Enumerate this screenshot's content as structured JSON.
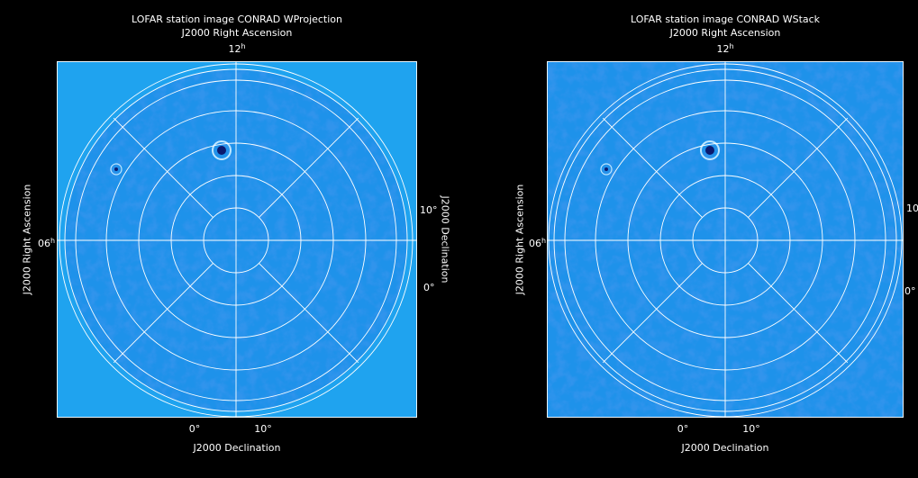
{
  "colors": {
    "background": "#000000",
    "map_light": "#1fa3ef",
    "map_dark": "#0a58d8",
    "grid": "#ffffff"
  },
  "left": {
    "title": "LOFAR station image CONRAD WProjection",
    "top_axis_label": "J2000 Right Ascension",
    "top_tick": "12",
    "top_tick_unit": "h",
    "left_axis_label": "J2000 Right Ascension",
    "left_tick": "06",
    "left_tick_unit": "h",
    "right_axis_label": "J2000 Declination",
    "right_ticks": [
      "10°",
      "0°"
    ],
    "bottom_ticks": [
      "0°",
      "10°"
    ],
    "bottom_axis_label": "J2000 Declination"
  },
  "right": {
    "title": "LOFAR station image CONRAD WStack",
    "top_axis_label": "J2000 Right Ascension",
    "top_tick": "12",
    "top_tick_unit": "h",
    "left_axis_label": "J2000 Right Ascension",
    "left_tick": "06",
    "left_tick_unit": "h",
    "right_ticks": [
      "10",
      "0°"
    ],
    "bottom_ticks": [
      "0°",
      "10°"
    ],
    "bottom_axis_label": "J2000 Declination"
  }
}
